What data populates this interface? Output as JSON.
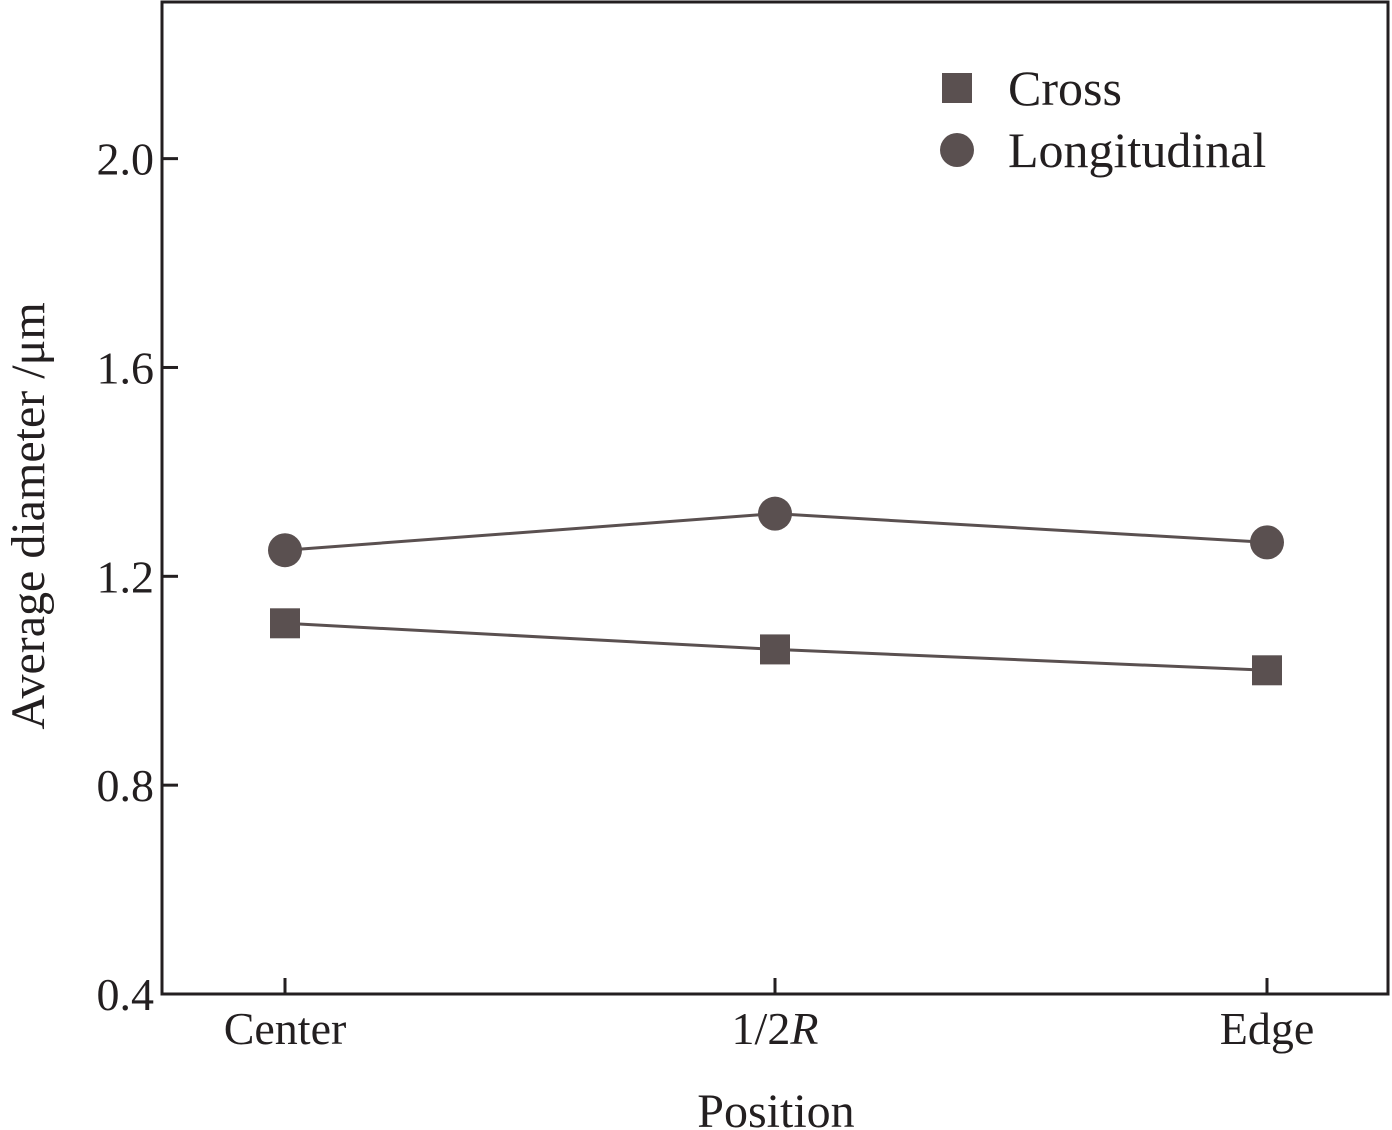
{
  "chart_data": {
    "type": "line",
    "categories": [
      "Center",
      "1/2R",
      "Edge"
    ],
    "category_labels": [
      {
        "main": "Center",
        "italic": ""
      },
      {
        "main": "1/2",
        "italic": "R"
      },
      {
        "main": "Edge",
        "italic": ""
      }
    ],
    "series": [
      {
        "name": "Cross",
        "marker": "square",
        "values": [
          1.11,
          1.06,
          1.02
        ]
      },
      {
        "name": "Longitudinal",
        "marker": "circle",
        "values": [
          1.25,
          1.32,
          1.265
        ]
      }
    ],
    "xlabel": "Position",
    "ylabel": "Average diameter /μm",
    "ylim": [
      0.4,
      2.3
    ],
    "yticks": [
      "0.4",
      "0.8",
      "1.2",
      "1.6",
      "2.0"
    ],
    "grid": false,
    "legend_position": "top-right",
    "colors": {
      "marker": "#5a5050",
      "line": "#5a5050",
      "axis": "#231f20"
    }
  }
}
